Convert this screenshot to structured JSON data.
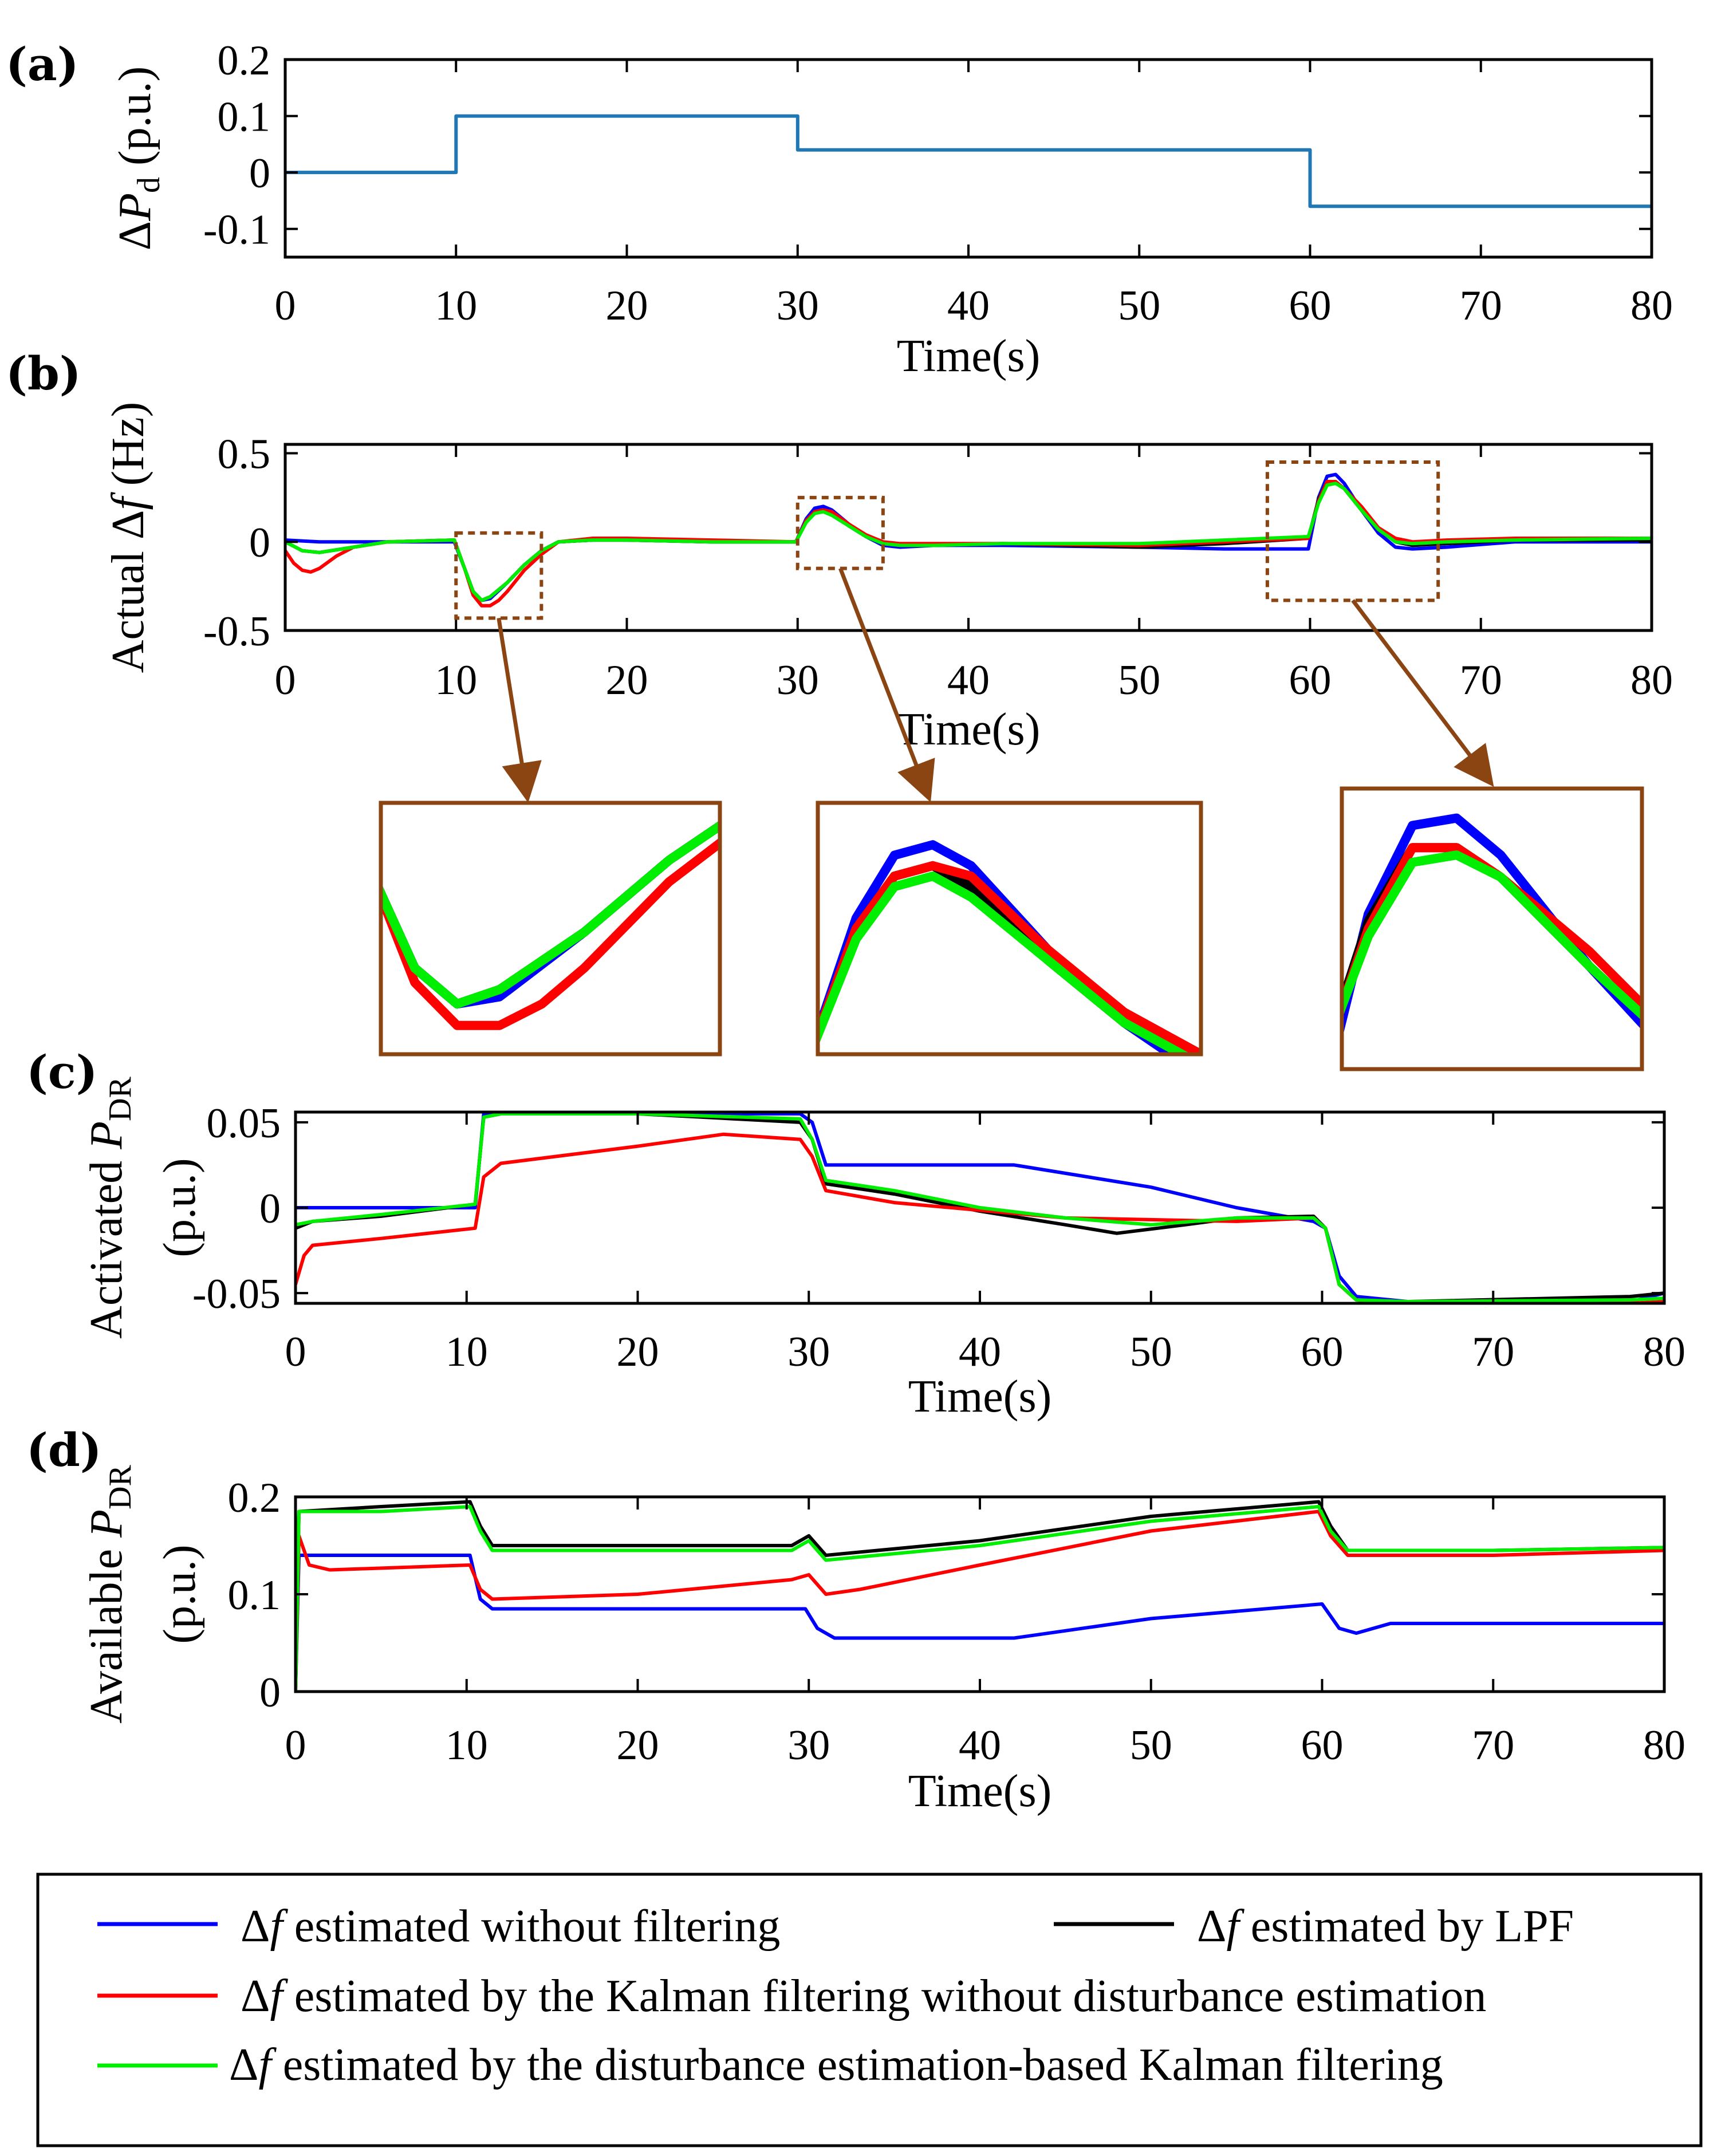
{
  "chart_data": [
    {
      "id": "a",
      "type": "line",
      "panel_label": "(a)",
      "ylabel": {
        "prefix": "Δ",
        "var": "P",
        "sub": "d",
        "suffix": " (p.u.)"
      },
      "xlabel": "Time(s)",
      "xlim": [
        0,
        80
      ],
      "ylim": [
        -0.15,
        0.2
      ],
      "xticks": [
        0,
        10,
        20,
        30,
        40,
        50,
        60,
        70,
        80
      ],
      "xtick_labels": [
        "0",
        "10",
        "20",
        "30",
        "40",
        "50",
        "60",
        "70",
        "80"
      ],
      "yticks": [
        0.2,
        0.1,
        0,
        -0.1
      ],
      "ytick_labels": [
        "0.2",
        "0.1",
        "0",
        "-0.1"
      ],
      "series": [
        {
          "name": "ΔPd",
          "color": "#1f77b4",
          "x": [
            0,
            10,
            10,
            30,
            30,
            60,
            60,
            80
          ],
          "y": [
            0,
            0,
            0.1,
            0.1,
            0.04,
            0.04,
            -0.06,
            -0.06
          ]
        }
      ]
    },
    {
      "id": "b",
      "type": "line",
      "panel_label": "(b)",
      "ylabel": {
        "prefix": "Actual Δ",
        "var": "f",
        "sub": "",
        "suffix": " (Hz)"
      },
      "xlabel": "Time(s)",
      "xlim": [
        0,
        80
      ],
      "ylim": [
        -0.5,
        0.55
      ],
      "xticks": [
        0,
        10,
        20,
        30,
        40,
        50,
        60,
        70,
        80
      ],
      "xtick_labels": [
        "0",
        "10",
        "20",
        "30",
        "40",
        "50",
        "60",
        "70",
        "80"
      ],
      "yticks": [
        0.5,
        0,
        -0.5
      ],
      "ytick_labels": [
        "0.5",
        "0",
        "-0.5"
      ],
      "zoom_boxes": [
        {
          "x": [
            10,
            15
          ],
          "y": [
            -0.43,
            0.05
          ]
        },
        {
          "x": [
            30,
            35
          ],
          "y": [
            -0.15,
            0.25
          ]
        },
        {
          "x": [
            57.5,
            67.5
          ],
          "y": [
            -0.33,
            0.45
          ]
        }
      ],
      "series": [
        {
          "name": "blue",
          "color": "#0000ff",
          "x": [
            0,
            2,
            5,
            9.9,
            10.5,
            11,
            11.5,
            12,
            13,
            14,
            15,
            16,
            18,
            20,
            25,
            29.9,
            30.5,
            31,
            31.5,
            32,
            33,
            34,
            35,
            36,
            38,
            42,
            50,
            55,
            59.9,
            60.5,
            61,
            61.5,
            62,
            63,
            64,
            65,
            66,
            68,
            72,
            80
          ],
          "y": [
            0.01,
            0.0,
            0.0,
            0.0,
            -0.15,
            -0.28,
            -0.33,
            -0.32,
            -0.23,
            -0.13,
            -0.05,
            0.0,
            0.01,
            0.01,
            0.0,
            0.0,
            0.13,
            0.19,
            0.2,
            0.18,
            0.1,
            0.03,
            -0.02,
            -0.03,
            -0.02,
            -0.02,
            -0.03,
            -0.04,
            -0.04,
            0.25,
            0.37,
            0.38,
            0.33,
            0.18,
            0.05,
            -0.03,
            -0.04,
            -0.03,
            0.0,
            0.0
          ]
        },
        {
          "name": "black",
          "color": "#000000",
          "x": [
            0,
            1,
            2,
            4,
            6,
            9.9,
            10.5,
            11,
            11.5,
            12,
            13,
            14,
            15,
            16,
            18,
            20,
            25,
            29.9,
            30.5,
            31,
            31.5,
            32,
            33,
            34,
            35,
            36,
            38,
            42,
            50,
            55,
            59.9,
            60.5,
            61,
            61.5,
            62,
            63,
            64,
            65,
            66,
            68,
            72,
            80
          ],
          "y": [
            0.0,
            -0.05,
            -0.06,
            -0.03,
            0.0,
            0.01,
            -0.15,
            -0.28,
            -0.33,
            -0.31,
            -0.23,
            -0.13,
            -0.05,
            0.0,
            0.01,
            0.01,
            0.0,
            0.0,
            0.12,
            0.17,
            0.18,
            0.16,
            0.09,
            0.03,
            -0.01,
            -0.02,
            -0.02,
            -0.01,
            -0.03,
            -0.01,
            0.02,
            0.24,
            0.34,
            0.34,
            0.3,
            0.18,
            0.07,
            0.0,
            -0.02,
            -0.01,
            0.01,
            0.01
          ]
        },
        {
          "name": "red",
          "color": "#ff0000",
          "x": [
            0,
            0.5,
            1,
            1.5,
            2,
            3,
            4,
            6,
            9.9,
            10.5,
            11,
            11.5,
            12,
            12.5,
            13,
            14,
            15,
            16,
            18,
            20,
            25,
            29.9,
            30.5,
            31,
            31.5,
            32,
            33,
            34,
            35,
            36,
            38,
            42,
            50,
            55,
            59.9,
            60.5,
            61,
            61.5,
            62,
            63,
            64,
            65,
            66,
            68,
            72,
            80
          ],
          "y": [
            -0.05,
            -0.12,
            -0.16,
            -0.17,
            -0.15,
            -0.08,
            -0.03,
            0.0,
            0.01,
            -0.15,
            -0.3,
            -0.36,
            -0.36,
            -0.33,
            -0.28,
            -0.16,
            -0.07,
            0.0,
            0.02,
            0.02,
            0.01,
            0.0,
            0.12,
            0.17,
            0.18,
            0.17,
            0.1,
            0.04,
            0.0,
            -0.01,
            -0.01,
            -0.01,
            -0.02,
            0.0,
            0.02,
            0.23,
            0.34,
            0.34,
            0.3,
            0.2,
            0.08,
            0.02,
            0.0,
            0.01,
            0.02,
            0.02
          ]
        },
        {
          "name": "green",
          "color": "#00ee00",
          "x": [
            0,
            1,
            2,
            4,
            6,
            9.9,
            10.5,
            11,
            11.5,
            12,
            13,
            14,
            15,
            16,
            18,
            20,
            25,
            29.9,
            30.5,
            31,
            31.5,
            32,
            33,
            34,
            35,
            36,
            38,
            42,
            50,
            55,
            59.9,
            60.5,
            61,
            61.5,
            62,
            63,
            64,
            65,
            66,
            68,
            72,
            80
          ],
          "y": [
            0.0,
            -0.05,
            -0.06,
            -0.03,
            0.0,
            0.01,
            -0.15,
            -0.28,
            -0.33,
            -0.31,
            -0.23,
            -0.13,
            -0.05,
            0.0,
            0.01,
            0.01,
            0.0,
            0.0,
            0.11,
            0.16,
            0.17,
            0.15,
            0.09,
            0.03,
            -0.01,
            -0.02,
            -0.02,
            -0.01,
            -0.01,
            0.01,
            0.03,
            0.22,
            0.32,
            0.33,
            0.3,
            0.18,
            0.07,
            0.0,
            -0.01,
            0.0,
            0.01,
            0.02
          ]
        }
      ]
    },
    {
      "id": "c",
      "type": "line",
      "panel_label": "(c)",
      "ylabel": {
        "prefix": "Activated ",
        "var": "P",
        "sub": "DR",
        "suffix": "",
        "line2": "(p.u.)"
      },
      "xlabel": "Time(s)",
      "xlim": [
        0,
        80
      ],
      "ylim": [
        -0.056,
        0.056
      ],
      "xticks": [
        0,
        10,
        20,
        30,
        40,
        50,
        60,
        70,
        80
      ],
      "xtick_labels": [
        "0",
        "10",
        "20",
        "30",
        "40",
        "50",
        "60",
        "70",
        "80"
      ],
      "yticks": [
        0.05,
        0,
        -0.05
      ],
      "ytick_labels": [
        "0.05",
        "0",
        "-0.05"
      ],
      "series": [
        {
          "name": "blue",
          "color": "#0000ff",
          "x": [
            0,
            10.5,
            11,
            12,
            29.5,
            30.2,
            31,
            42,
            50,
            55,
            59.5,
            60.2,
            61,
            62,
            65,
            78,
            80
          ],
          "y": [
            0.0,
            0.0,
            0.055,
            0.055,
            0.055,
            0.05,
            0.025,
            0.025,
            0.012,
            0.0,
            -0.008,
            -0.012,
            -0.04,
            -0.052,
            -0.055,
            -0.055,
            -0.05
          ]
        },
        {
          "name": "black",
          "color": "#000000",
          "x": [
            0,
            1,
            5,
            10.5,
            11,
            12,
            20,
            29.5,
            30.2,
            31,
            35,
            40,
            45,
            48,
            52,
            55,
            59.5,
            60.2,
            61,
            62,
            65,
            78,
            80
          ],
          "y": [
            -0.012,
            -0.008,
            -0.005,
            0.002,
            0.053,
            0.055,
            0.055,
            0.05,
            0.04,
            0.014,
            0.008,
            -0.002,
            -0.01,
            -0.015,
            -0.01,
            -0.006,
            -0.005,
            -0.012,
            -0.045,
            -0.054,
            -0.055,
            -0.052,
            -0.05
          ]
        },
        {
          "name": "red",
          "color": "#ff0000",
          "x": [
            0,
            0.5,
            1,
            5,
            10.5,
            11,
            12,
            20,
            25,
            29.5,
            30.2,
            31,
            35,
            45,
            55,
            59.5,
            60.2,
            61,
            62,
            65,
            78,
            80
          ],
          "y": [
            -0.045,
            -0.028,
            -0.022,
            -0.018,
            -0.012,
            0.018,
            0.026,
            0.036,
            0.043,
            0.04,
            0.03,
            0.01,
            0.003,
            -0.006,
            -0.008,
            -0.006,
            -0.012,
            -0.045,
            -0.054,
            -0.056,
            -0.056,
            -0.055
          ]
        },
        {
          "name": "green",
          "color": "#00ee00",
          "x": [
            0,
            1,
            5,
            10.5,
            11,
            12,
            20,
            29.5,
            30.2,
            31,
            35,
            40,
            45,
            50,
            55,
            59.5,
            60.2,
            61,
            62,
            65,
            78,
            80
          ],
          "y": [
            -0.01,
            -0.008,
            -0.004,
            0.002,
            0.053,
            0.055,
            0.055,
            0.052,
            0.04,
            0.016,
            0.01,
            0.0,
            -0.006,
            -0.01,
            -0.006,
            -0.006,
            -0.012,
            -0.045,
            -0.054,
            -0.055,
            -0.054,
            -0.053
          ]
        }
      ]
    },
    {
      "id": "d",
      "type": "line",
      "panel_label": "(d)",
      "ylabel": {
        "prefix": "Available ",
        "var": "P",
        "sub": "DR",
        "suffix": "",
        "line2": "(p.u.)"
      },
      "xlabel": "Time(s)",
      "xlim": [
        0,
        80
      ],
      "ylim": [
        0,
        0.2
      ],
      "xticks": [
        0,
        10,
        20,
        30,
        40,
        50,
        60,
        70,
        80
      ],
      "xtick_labels": [
        "0",
        "10",
        "20",
        "30",
        "40",
        "50",
        "60",
        "70",
        "80"
      ],
      "yticks": [
        0.2,
        0.1,
        0
      ],
      "ytick_labels": [
        "0.2",
        "0.1",
        "0"
      ],
      "series": [
        {
          "name": "blue",
          "color": "#0000ff",
          "x": [
            0,
            0.2,
            10.2,
            10.8,
            11.5,
            29.8,
            30.5,
            31.5,
            42,
            50,
            60,
            61,
            62,
            64,
            80
          ],
          "y": [
            0.0,
            0.14,
            0.14,
            0.095,
            0.085,
            0.085,
            0.065,
            0.055,
            0.055,
            0.075,
            0.09,
            0.065,
            0.06,
            0.07,
            0.07
          ]
        },
        {
          "name": "black",
          "color": "#000000",
          "x": [
            0,
            0.2,
            5,
            10.2,
            10.8,
            11.5,
            29,
            30,
            31,
            34,
            40,
            50,
            59.8,
            60.5,
            61.5,
            70,
            80
          ],
          "y": [
            0.0,
            0.185,
            0.19,
            0.195,
            0.17,
            0.15,
            0.15,
            0.16,
            0.14,
            0.145,
            0.155,
            0.18,
            0.195,
            0.17,
            0.145,
            0.145,
            0.148
          ]
        },
        {
          "name": "red",
          "color": "#ff0000",
          "x": [
            0,
            0.2,
            0.8,
            2,
            10.2,
            10.8,
            11.5,
            20,
            29,
            30,
            31,
            33,
            40,
            50,
            59.8,
            60.5,
            61.5,
            70,
            80
          ],
          "y": [
            0.0,
            0.16,
            0.13,
            0.125,
            0.13,
            0.105,
            0.095,
            0.1,
            0.115,
            0.12,
            0.1,
            0.105,
            0.13,
            0.165,
            0.185,
            0.16,
            0.14,
            0.14,
            0.145
          ]
        },
        {
          "name": "green",
          "color": "#00ee00",
          "x": [
            0,
            0.2,
            5,
            10.2,
            10.8,
            11.5,
            29,
            30,
            31,
            34,
            40,
            50,
            59.8,
            60.5,
            61.5,
            70,
            80
          ],
          "y": [
            0.0,
            0.185,
            0.185,
            0.19,
            0.165,
            0.145,
            0.145,
            0.155,
            0.135,
            0.14,
            0.15,
            0.175,
            0.19,
            0.165,
            0.145,
            0.145,
            0.148
          ]
        }
      ]
    }
  ],
  "insets": [
    {
      "id": "inset-1",
      "source_box": 0,
      "xlim": [
        10.6,
        14.6
      ],
      "ylim": [
        -0.4,
        -0.05
      ]
    },
    {
      "id": "inset-2",
      "source_box": 1,
      "xlim": [
        30.0,
        35.0
      ],
      "ylim": [
        0.0,
        0.24
      ]
    },
    {
      "id": "inset-3",
      "source_box": 2,
      "xlim": [
        60.2,
        63.6
      ],
      "ylim": [
        0.04,
        0.42
      ]
    }
  ],
  "legend": {
    "entries": [
      {
        "color": "#0000ff",
        "prefix": "Δ",
        "var": "f",
        "text": "  estimated without filtering"
      },
      {
        "color": "#000000",
        "prefix": "Δ",
        "var": "f",
        "text": " estimated by LPF"
      },
      {
        "color": "#ff0000",
        "prefix": "Δ",
        "var": "f",
        "text": "  estimated by the  Kalman filtering without disturbance estimation"
      },
      {
        "color": "#00ee00",
        "prefix": "Δ",
        "var": "f",
        "text": "  estimated by the disturbance estimation-based Kalman filtering"
      }
    ]
  }
}
